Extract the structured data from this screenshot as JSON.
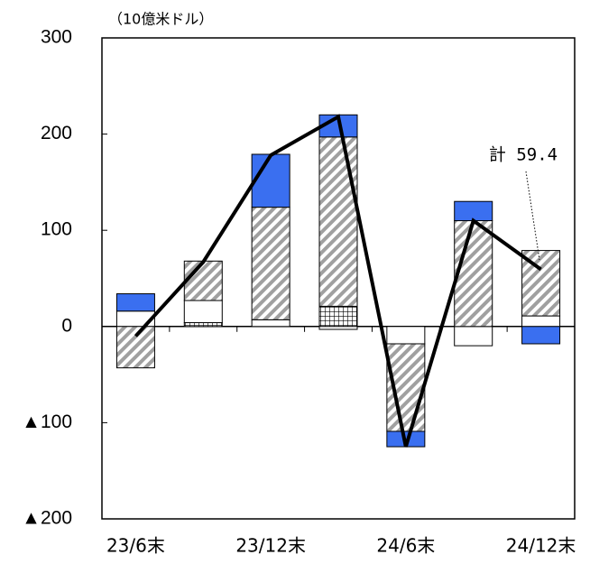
{
  "chart_data": {
    "type": "bar",
    "ylabel": "（10億米ドル）",
    "annotation": "計 59.4",
    "categories": [
      "23/6末",
      null,
      "23/12末",
      null,
      "24/6末",
      null,
      "24/12末"
    ],
    "series": [
      {
        "color": "#ffffff",
        "pattern": "grid",
        "values": [
          null,
          4,
          null,
          21,
          null,
          null,
          null
        ]
      },
      {
        "color": "#ffffff",
        "pattern": "solid",
        "values": [
          16,
          23,
          7,
          -3,
          -18,
          -20,
          11
        ]
      },
      {
        "color": "#ffffff",
        "pattern": "hatch",
        "values": [
          -43,
          41,
          117,
          176,
          -91,
          110,
          68
        ]
      },
      {
        "color": "#3a6ff0",
        "pattern": "solid",
        "values": [
          18,
          null,
          55,
          23,
          -16,
          20,
          -18
        ]
      },
      {
        "type": "line",
        "color": "#000000",
        "values": [
          -10,
          67,
          178,
          218,
          -125,
          110,
          59.4
        ]
      }
    ],
    "ylim": [
      -200,
      300
    ],
    "yticks": [
      {
        "value": -200,
        "label": "▲200"
      },
      {
        "value": -100,
        "label": "▲100"
      },
      0,
      100,
      200,
      300
    ]
  }
}
